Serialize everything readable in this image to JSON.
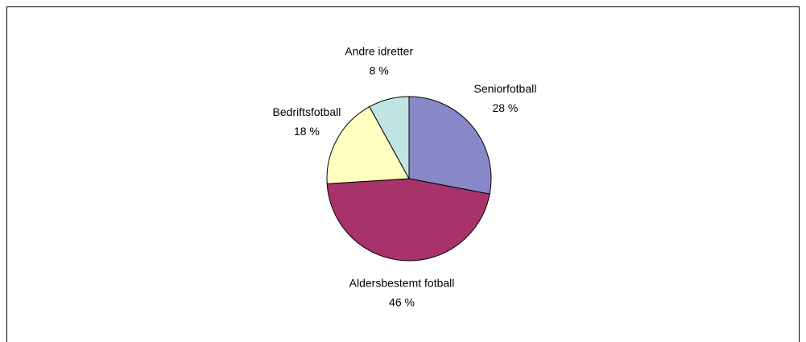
{
  "chart_data": {
    "type": "pie",
    "categories": [
      "Seniorfotball",
      "Aldersbestemt fotball",
      "Bedriftsfotball",
      "Andre idretter"
    ],
    "values": [
      28,
      46,
      18,
      8
    ],
    "value_labels": [
      "28 %",
      "46 %",
      "18 %",
      "8 %"
    ],
    "colors": [
      "#8888c8",
      "#a8336a",
      "#ffffc0",
      "#c0e4e4"
    ]
  }
}
